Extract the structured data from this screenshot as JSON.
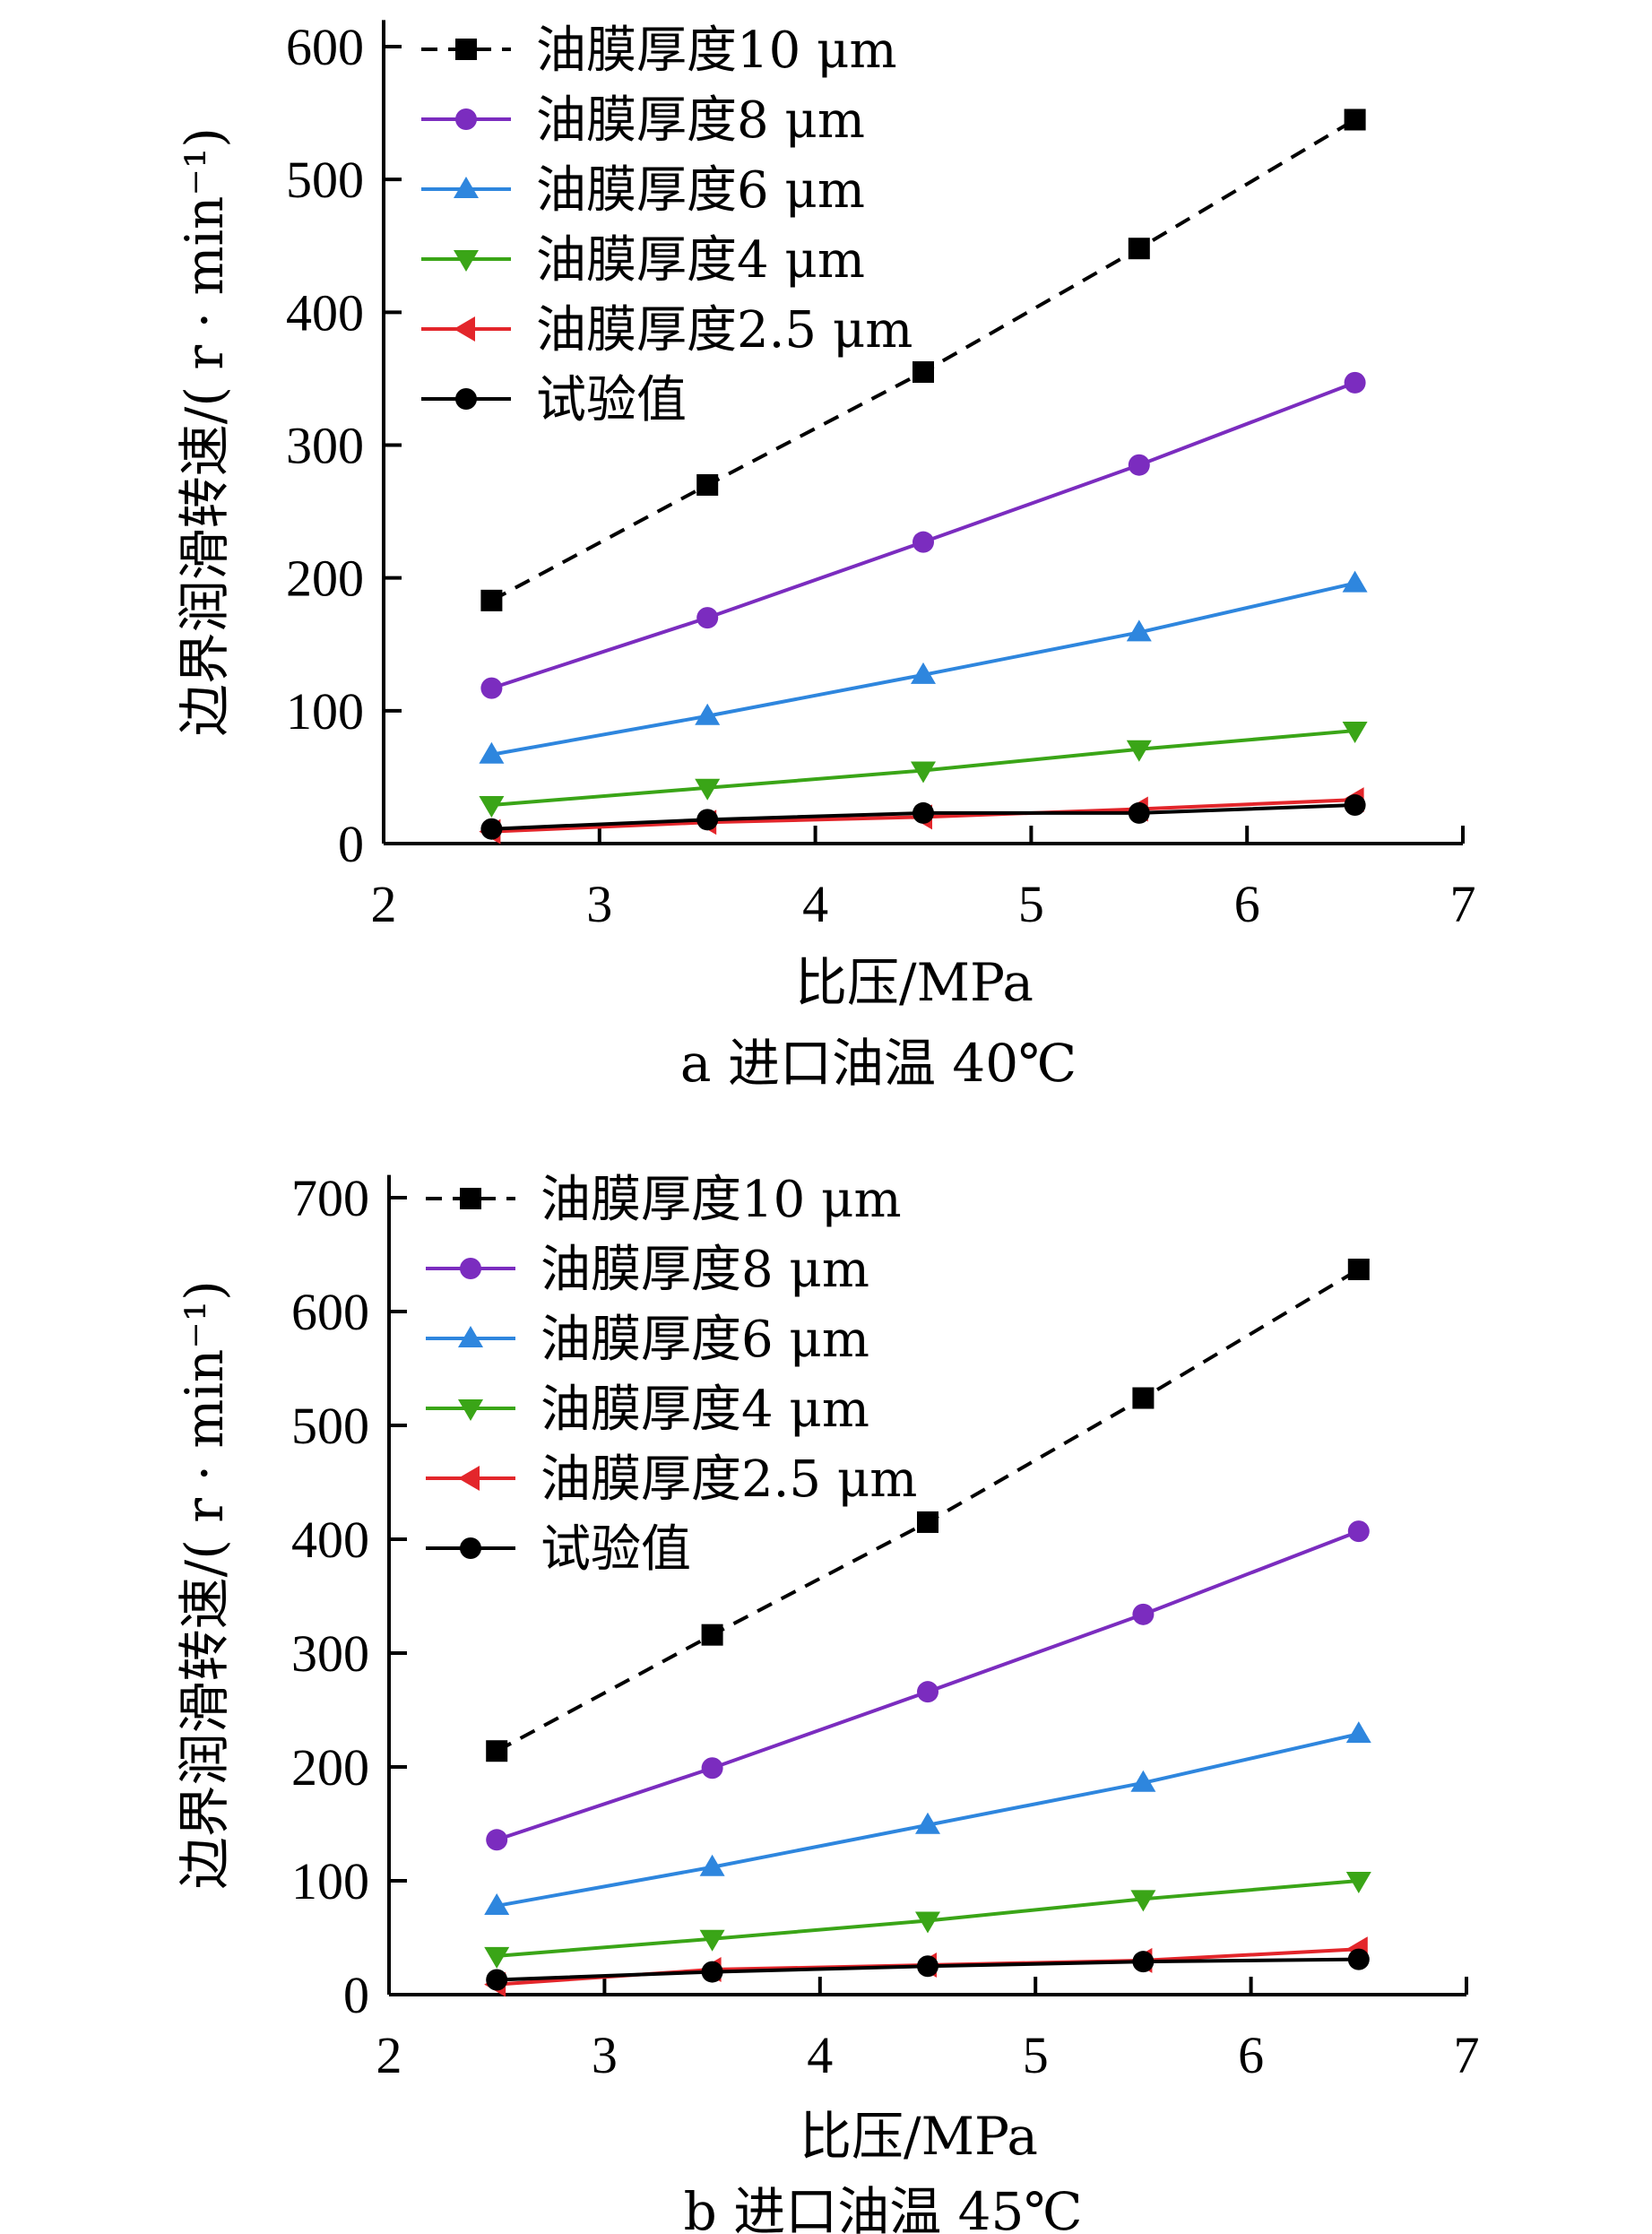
{
  "chart_data": [
    {
      "type": "line",
      "caption": "a  进口油温 40℃",
      "xlabel": "比压/MPa",
      "ylabel": "边界润滑转速/( r · min⁻¹)",
      "xlim": [
        2,
        7
      ],
      "ylim": [
        0,
        620
      ],
      "xticks": [
        2,
        3,
        4,
        5,
        6,
        7
      ],
      "yticks": [
        0,
        100,
        200,
        300,
        400,
        500,
        600
      ],
      "grid": false,
      "legend_position": "top-left",
      "x": [
        2.5,
        3.5,
        4.5,
        5.5,
        6.5
      ],
      "series": [
        {
          "name": "油膜厚度10 μm",
          "values": [
            183,
            270,
            355,
            448,
            545
          ],
          "color": "#000000",
          "marker": "square",
          "dashed": true
        },
        {
          "name": "油膜厚度8 μm",
          "values": [
            117,
            170,
            227,
            285,
            347
          ],
          "color": "#7B2CBF",
          "marker": "circle",
          "dashed": false
        },
        {
          "name": "油膜厚度6 μm",
          "values": [
            67,
            96,
            127,
            159,
            196
          ],
          "color": "#2E86DE",
          "marker": "triangle-up",
          "dashed": false
        },
        {
          "name": "油膜厚度4 μm",
          "values": [
            29,
            42,
            55,
            71,
            85
          ],
          "color": "#3AA517",
          "marker": "triangle-down",
          "dashed": false
        },
        {
          "name": "油膜厚度2.5 μm",
          "values": [
            9,
            16,
            20,
            26,
            33
          ],
          "color": "#E3262B",
          "marker": "triangle-left",
          "dashed": false
        },
        {
          "name": "试验值",
          "values": [
            11,
            18,
            23,
            23,
            29
          ],
          "color": "#000000",
          "marker": "circle",
          "dashed": false
        }
      ]
    },
    {
      "type": "line",
      "caption": "b  进口油温 45℃",
      "xlabel": "比压/MPa",
      "ylabel": "边界润滑转速/( r · min⁻¹)",
      "xlim": [
        2,
        7
      ],
      "ylim": [
        0,
        720
      ],
      "xticks": [
        2,
        3,
        4,
        5,
        6,
        7
      ],
      "yticks": [
        0,
        100,
        200,
        300,
        400,
        500,
        600,
        700
      ],
      "grid": false,
      "legend_position": "top-left",
      "x": [
        2.5,
        3.5,
        4.5,
        5.5,
        6.5
      ],
      "series": [
        {
          "name": "油膜厚度10 μm",
          "values": [
            214,
            316,
            415,
            524,
            637
          ],
          "color": "#000000",
          "marker": "square",
          "dashed": true
        },
        {
          "name": "油膜厚度8 μm",
          "values": [
            136,
            199,
            266,
            334,
            407
          ],
          "color": "#7B2CBF",
          "marker": "circle",
          "dashed": false
        },
        {
          "name": "油膜厚度6 μm",
          "values": [
            78,
            112,
            149,
            186,
            229
          ],
          "color": "#2E86DE",
          "marker": "triangle-up",
          "dashed": false
        },
        {
          "name": "油膜厚度4 μm",
          "values": [
            34,
            49,
            65,
            84,
            100
          ],
          "color": "#3AA517",
          "marker": "triangle-down",
          "dashed": false
        },
        {
          "name": "油膜厚度2.5 μm",
          "values": [
            9,
            22,
            26,
            30,
            40
          ],
          "color": "#E3262B",
          "marker": "triangle-left",
          "dashed": false
        },
        {
          "name": "试验值",
          "values": [
            13,
            20,
            25,
            29,
            31
          ],
          "color": "#000000",
          "marker": "circle",
          "dashed": false
        }
      ]
    }
  ]
}
